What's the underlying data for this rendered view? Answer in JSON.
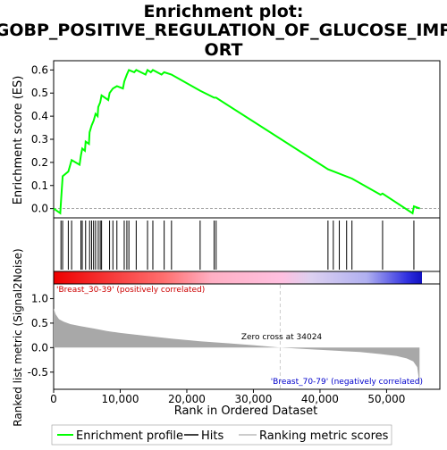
{
  "chart_data": {
    "type": "line",
    "title_line1": "Enrichment plot:",
    "title_line2": "GOBP_POSITIVE_REGULATION_OF_GLUCOSE_IMP",
    "title_line3": "ORT",
    "es_ylabel": "Enrichment score (ES)",
    "metric_ylabel": "Ranked list metric (Signal2Noise)",
    "xlabel": "Rank in Ordered Dataset",
    "es_ylim": [
      -0.04,
      0.64
    ],
    "es_yticks": [
      "0.0",
      "0.1",
      "0.2",
      "0.3",
      "0.4",
      "0.5",
      "0.6"
    ],
    "metric_ylim": [
      -0.85,
      1.3
    ],
    "metric_yticks": [
      "-0.5",
      "0.0",
      "0.5",
      "1.0"
    ],
    "xlim": [
      0,
      58000
    ],
    "xticks": [
      "0",
      "10,000",
      "20,000",
      "30,000",
      "40,000",
      "50,000"
    ],
    "es_curve": [
      [
        0,
        0
      ],
      [
        1000,
        -0.02
      ],
      [
        1100,
        0.03
      ],
      [
        1350,
        0.14
      ],
      [
        2200,
        0.16
      ],
      [
        2400,
        0.18
      ],
      [
        2700,
        0.21
      ],
      [
        3900,
        0.19
      ],
      [
        4100,
        0.23
      ],
      [
        4300,
        0.26
      ],
      [
        4700,
        0.25
      ],
      [
        4800,
        0.29
      ],
      [
        5300,
        0.28
      ],
      [
        5400,
        0.33
      ],
      [
        5700,
        0.36
      ],
      [
        6000,
        0.38
      ],
      [
        6300,
        0.41
      ],
      [
        6600,
        0.4
      ],
      [
        6700,
        0.44
      ],
      [
        7000,
        0.46
      ],
      [
        7200,
        0.49
      ],
      [
        8200,
        0.47
      ],
      [
        8400,
        0.5
      ],
      [
        8900,
        0.52
      ],
      [
        9500,
        0.53
      ],
      [
        10400,
        0.52
      ],
      [
        10600,
        0.55
      ],
      [
        11000,
        0.58
      ],
      [
        11300,
        0.6
      ],
      [
        12100,
        0.59
      ],
      [
        12400,
        0.6
      ],
      [
        13800,
        0.58
      ],
      [
        14100,
        0.6
      ],
      [
        14600,
        0.59
      ],
      [
        14900,
        0.6
      ],
      [
        16200,
        0.58
      ],
      [
        16600,
        0.59
      ],
      [
        17700,
        0.58
      ],
      [
        22000,
        0.51
      ],
      [
        24100,
        0.48
      ],
      [
        24400,
        0.48
      ],
      [
        41200,
        0.17
      ],
      [
        44800,
        0.13
      ],
      [
        49100,
        0.06
      ],
      [
        49400,
        0.065
      ],
      [
        53900,
        -0.02
      ],
      [
        54100,
        0.01
      ],
      [
        55000,
        0.0
      ]
    ],
    "hits": [
      1100,
      1350,
      2200,
      2700,
      4100,
      4300,
      4800,
      5400,
      5700,
      6000,
      6300,
      6700,
      7000,
      7200,
      8400,
      8900,
      9500,
      10600,
      11000,
      11300,
      12400,
      14100,
      14900,
      16600,
      17700,
      22000,
      24100,
      24400,
      41200,
      42000,
      42900,
      44000,
      44800,
      49400,
      54100
    ],
    "metric_curve": [
      [
        0,
        0.8
      ],
      [
        300,
        0.68
      ],
      [
        800,
        0.58
      ],
      [
        1500,
        0.53
      ],
      [
        2500,
        0.48
      ],
      [
        4000,
        0.44
      ],
      [
        6000,
        0.39
      ],
      [
        8000,
        0.34
      ],
      [
        10000,
        0.3
      ],
      [
        14000,
        0.24
      ],
      [
        18000,
        0.18
      ],
      [
        22000,
        0.13
      ],
      [
        26000,
        0.09
      ],
      [
        30000,
        0.05
      ],
      [
        34024,
        0.0
      ],
      [
        38000,
        -0.03
      ],
      [
        42000,
        -0.06
      ],
      [
        46000,
        -0.09
      ],
      [
        49000,
        -0.13
      ],
      [
        51500,
        -0.17
      ],
      [
        53000,
        -0.22
      ],
      [
        54000,
        -0.28
      ],
      [
        54600,
        -0.4
      ],
      [
        54800,
        -0.6
      ],
      [
        54950,
        -0.85
      ]
    ],
    "zero_cross_x": 34024,
    "zero_cross_label": "Zero cross at 34024",
    "pos_label": "'Breast_30-39' (positively correlated)",
    "neg_label": "'Breast_70-79' (negatively correlated)",
    "legend": {
      "es": "Enrichment profile",
      "hits": "Hits",
      "metric": "Ranking metric scores"
    },
    "colors": {
      "es_line": "#00ff00",
      "hits": "#000000",
      "metric_fill": "#a8a8a8",
      "pos_label": "#cc0000",
      "neg_label": "#0000cc",
      "zero_line": "#cccccc"
    }
  }
}
